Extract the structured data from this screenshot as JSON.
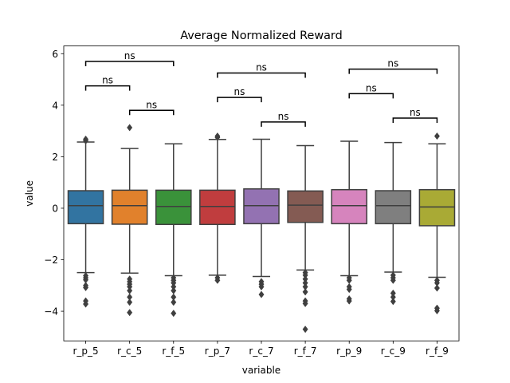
{
  "chart_data": {
    "type": "box",
    "title": "Average Normalized Reward",
    "xlabel": "variable",
    "ylabel": "value",
    "ylim": [
      -5.15,
      6.3
    ],
    "yticks": [
      -4,
      -2,
      0,
      2,
      4,
      6
    ],
    "ytick_labels": [
      "−4",
      "−2",
      "0",
      "2",
      "4",
      "6"
    ],
    "categories": [
      "r_p_5",
      "r_c_5",
      "r_f_5",
      "r_p_7",
      "r_c_7",
      "r_f_7",
      "r_p_9",
      "r_c_9",
      "r_f_9"
    ],
    "colors": [
      "#3274a1",
      "#e1812c",
      "#3a923a",
      "#c03d3e",
      "#9372b2",
      "#845b53",
      "#d684bd",
      "#7f7f7f",
      "#a9aa35"
    ],
    "boxes": [
      {
        "q1": -0.6,
        "median": 0.1,
        "q3": 0.68,
        "whisker_low": -2.5,
        "whisker_high": 2.57,
        "outliers": [
          2.68,
          2.62,
          -2.62,
          -2.7,
          -2.78,
          -3.0,
          -3.08,
          -3.6,
          -3.72
        ]
      },
      {
        "q1": -0.62,
        "median": 0.1,
        "q3": 0.7,
        "whisker_low": -2.52,
        "whisker_high": 2.32,
        "outliers": [
          3.13,
          -2.75,
          -2.85,
          -2.95,
          -3.05,
          -3.2,
          -3.45,
          -3.65,
          -4.05
        ]
      },
      {
        "q1": -0.63,
        "median": 0.07,
        "q3": 0.7,
        "whisker_low": -2.62,
        "whisker_high": 2.5,
        "outliers": [
          -2.7,
          -2.8,
          -2.9,
          -3.05,
          -3.2,
          -3.45,
          -3.65,
          -4.08
        ]
      },
      {
        "q1": -0.63,
        "median": 0.07,
        "q3": 0.7,
        "whisker_low": -2.6,
        "whisker_high": 2.67,
        "outliers": [
          2.8,
          2.75,
          -2.7,
          -2.8
        ]
      },
      {
        "q1": -0.6,
        "median": 0.1,
        "q3": 0.75,
        "whisker_low": -2.65,
        "whisker_high": 2.68,
        "outliers": [
          -2.85,
          -2.95,
          -3.05,
          -3.35
        ]
      },
      {
        "q1": -0.55,
        "median": 0.12,
        "q3": 0.67,
        "whisker_low": -2.4,
        "whisker_high": 2.43,
        "outliers": [
          -2.5,
          -2.6,
          -2.75,
          -2.9,
          -3.05,
          -3.25,
          -3.6,
          -3.7,
          -4.7
        ]
      },
      {
        "q1": -0.6,
        "median": 0.1,
        "q3": 0.72,
        "whisker_low": -2.62,
        "whisker_high": 2.6,
        "outliers": [
          -2.7,
          -2.8,
          -3.05,
          -3.15,
          -3.52,
          -3.6
        ]
      },
      {
        "q1": -0.6,
        "median": 0.1,
        "q3": 0.68,
        "whisker_low": -2.48,
        "whisker_high": 2.55,
        "outliers": [
          -2.6,
          -2.7,
          -2.8,
          -3.3,
          -3.45,
          -3.62
        ]
      },
      {
        "q1": -0.68,
        "median": 0.05,
        "q3": 0.72,
        "whisker_low": -2.68,
        "whisker_high": 2.5,
        "outliers": [
          2.8,
          -2.8,
          -2.9,
          -3.1,
          -3.88,
          -3.98
        ]
      }
    ],
    "annotations": [
      {
        "from": 0,
        "to": 1,
        "y": 4.75,
        "text": "ns"
      },
      {
        "from": 1,
        "to": 2,
        "y": 3.8,
        "text": "ns"
      },
      {
        "from": 0,
        "to": 2,
        "y": 5.7,
        "text": "ns"
      },
      {
        "from": 3,
        "to": 4,
        "y": 4.3,
        "text": "ns"
      },
      {
        "from": 4,
        "to": 5,
        "y": 3.35,
        "text": "ns"
      },
      {
        "from": 3,
        "to": 5,
        "y": 5.25,
        "text": "ns"
      },
      {
        "from": 6,
        "to": 7,
        "y": 4.45,
        "text": "ns"
      },
      {
        "from": 7,
        "to": 8,
        "y": 3.5,
        "text": "ns"
      },
      {
        "from": 6,
        "to": 8,
        "y": 5.4,
        "text": "ns"
      }
    ]
  }
}
